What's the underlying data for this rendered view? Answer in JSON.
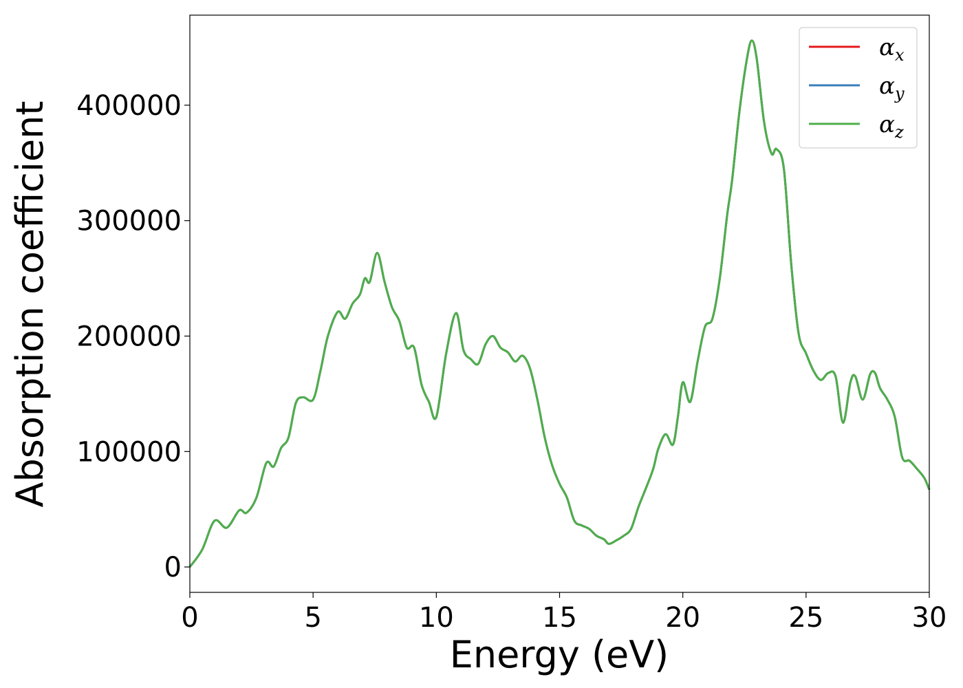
{
  "chart_data": {
    "type": "line",
    "title": "",
    "xlabel": "Energy (eV)",
    "ylabel": "Absorption coefficient",
    "xlim": [
      0,
      30
    ],
    "ylim": [
      -22000,
      478000
    ],
    "xticks": [
      0,
      5,
      10,
      15,
      20,
      25,
      30
    ],
    "yticks": [
      0,
      100000,
      200000,
      300000,
      400000
    ],
    "grid": false,
    "legend_position": "top-right",
    "series": [
      {
        "name": "α",
        "subscript": "x",
        "color": "#e41a1c",
        "x": [
          0,
          0.5,
          1.0,
          1.5,
          2.0,
          2.3,
          2.7,
          3.1,
          3.4,
          3.7,
          4.0,
          4.3,
          4.6,
          5.0,
          5.3,
          5.6,
          6.0,
          6.3,
          6.6,
          6.9,
          7.1,
          7.3,
          7.6,
          7.9,
          8.2,
          8.5,
          8.8,
          9.1,
          9.4,
          9.7,
          10.0,
          10.4,
          10.8,
          11.1,
          11.4,
          11.7,
          12.0,
          12.3,
          12.6,
          12.9,
          13.2,
          13.5,
          13.8,
          14.1,
          14.4,
          14.7,
          15.0,
          15.3,
          15.6,
          15.9,
          16.2,
          16.5,
          16.8,
          17.0,
          17.3,
          17.6,
          17.9,
          18.2,
          18.5,
          18.8,
          19.0,
          19.3,
          19.6,
          19.8,
          20.0,
          20.3,
          20.6,
          20.9,
          21.2,
          21.5,
          21.8,
          22.0,
          22.3,
          22.6,
          22.8,
          23.0,
          23.3,
          23.6,
          23.8,
          24.1,
          24.4,
          24.7,
          25.0,
          25.3,
          25.6,
          25.9,
          26.2,
          26.5,
          26.8,
          27.0,
          27.3,
          27.6,
          27.8,
          28.0,
          28.3,
          28.6,
          28.9,
          29.2,
          29.5,
          29.8,
          30.0
        ],
        "values": [
          0,
          15000,
          40000,
          34000,
          49000,
          47000,
          60000,
          90000,
          87000,
          103000,
          112000,
          142000,
          147000,
          145000,
          170000,
          200000,
          221000,
          215000,
          228000,
          236000,
          250000,
          247000,
          272000,
          247000,
          225000,
          213000,
          190000,
          190000,
          158000,
          143000,
          130000,
          185000,
          220000,
          188000,
          180000,
          176000,
          193000,
          200000,
          190000,
          186000,
          178000,
          183000,
          172000,
          145000,
          112000,
          88000,
          72000,
          60000,
          40000,
          36000,
          33000,
          27000,
          24000,
          20000,
          23000,
          27000,
          33000,
          52000,
          68000,
          85000,
          102000,
          115000,
          106000,
          130000,
          160000,
          143000,
          178000,
          208000,
          215000,
          250000,
          305000,
          335000,
          395000,
          440000,
          456000,
          440000,
          385000,
          358000,
          362000,
          345000,
          262000,
          202000,
          185000,
          170000,
          162000,
          168000,
          165000,
          125000,
          160000,
          165000,
          145000,
          167000,
          168000,
          155000,
          145000,
          130000,
          95000,
          92000,
          85000,
          77000,
          67000
        ]
      },
      {
        "name": "α",
        "subscript": "y",
        "color": "#377eb8",
        "x": [
          0,
          0.5,
          1.0,
          1.5,
          2.0,
          2.3,
          2.7,
          3.1,
          3.4,
          3.7,
          4.0,
          4.3,
          4.6,
          5.0,
          5.3,
          5.6,
          6.0,
          6.3,
          6.6,
          6.9,
          7.1,
          7.3,
          7.6,
          7.9,
          8.2,
          8.5,
          8.8,
          9.1,
          9.4,
          9.7,
          10.0,
          10.4,
          10.8,
          11.1,
          11.4,
          11.7,
          12.0,
          12.3,
          12.6,
          12.9,
          13.2,
          13.5,
          13.8,
          14.1,
          14.4,
          14.7,
          15.0,
          15.3,
          15.6,
          15.9,
          16.2,
          16.5,
          16.8,
          17.0,
          17.3,
          17.6,
          17.9,
          18.2,
          18.5,
          18.8,
          19.0,
          19.3,
          19.6,
          19.8,
          20.0,
          20.3,
          20.6,
          20.9,
          21.2,
          21.5,
          21.8,
          22.0,
          22.3,
          22.6,
          22.8,
          23.0,
          23.3,
          23.6,
          23.8,
          24.1,
          24.4,
          24.7,
          25.0,
          25.3,
          25.6,
          25.9,
          26.2,
          26.5,
          26.8,
          27.0,
          27.3,
          27.6,
          27.8,
          28.0,
          28.3,
          28.6,
          28.9,
          29.2,
          29.5,
          29.8,
          30.0
        ],
        "values": [
          0,
          15000,
          40000,
          34000,
          49000,
          47000,
          60000,
          90000,
          87000,
          103000,
          112000,
          142000,
          147000,
          145000,
          170000,
          200000,
          221000,
          215000,
          228000,
          236000,
          250000,
          247000,
          272000,
          247000,
          225000,
          213000,
          190000,
          190000,
          158000,
          143000,
          130000,
          185000,
          220000,
          188000,
          180000,
          176000,
          193000,
          200000,
          190000,
          186000,
          178000,
          183000,
          172000,
          145000,
          112000,
          88000,
          72000,
          60000,
          40000,
          36000,
          33000,
          27000,
          24000,
          20000,
          23000,
          27000,
          33000,
          52000,
          68000,
          85000,
          102000,
          115000,
          106000,
          130000,
          160000,
          143000,
          178000,
          208000,
          215000,
          250000,
          305000,
          335000,
          395000,
          440000,
          456000,
          440000,
          385000,
          358000,
          362000,
          345000,
          262000,
          202000,
          185000,
          170000,
          162000,
          168000,
          165000,
          125000,
          160000,
          165000,
          145000,
          167000,
          168000,
          155000,
          145000,
          130000,
          95000,
          92000,
          85000,
          77000,
          67000
        ]
      },
      {
        "name": "α",
        "subscript": "z",
        "color": "#4daf4a",
        "x": [
          0,
          0.5,
          1.0,
          1.5,
          2.0,
          2.3,
          2.7,
          3.1,
          3.4,
          3.7,
          4.0,
          4.3,
          4.6,
          5.0,
          5.3,
          5.6,
          6.0,
          6.3,
          6.6,
          6.9,
          7.1,
          7.3,
          7.6,
          7.9,
          8.2,
          8.5,
          8.8,
          9.1,
          9.4,
          9.7,
          10.0,
          10.4,
          10.8,
          11.1,
          11.4,
          11.7,
          12.0,
          12.3,
          12.6,
          12.9,
          13.2,
          13.5,
          13.8,
          14.1,
          14.4,
          14.7,
          15.0,
          15.3,
          15.6,
          15.9,
          16.2,
          16.5,
          16.8,
          17.0,
          17.3,
          17.6,
          17.9,
          18.2,
          18.5,
          18.8,
          19.0,
          19.3,
          19.6,
          19.8,
          20.0,
          20.3,
          20.6,
          20.9,
          21.2,
          21.5,
          21.8,
          22.0,
          22.3,
          22.6,
          22.8,
          23.0,
          23.3,
          23.6,
          23.8,
          24.1,
          24.4,
          24.7,
          25.0,
          25.3,
          25.6,
          25.9,
          26.2,
          26.5,
          26.8,
          27.0,
          27.3,
          27.6,
          27.8,
          28.0,
          28.3,
          28.6,
          28.9,
          29.2,
          29.5,
          29.8,
          30.0
        ],
        "values": [
          0,
          15000,
          40000,
          34000,
          49000,
          47000,
          60000,
          90000,
          87000,
          103000,
          112000,
          142000,
          147000,
          145000,
          170000,
          200000,
          221000,
          215000,
          228000,
          236000,
          250000,
          247000,
          272000,
          247000,
          225000,
          213000,
          190000,
          190000,
          158000,
          143000,
          130000,
          185000,
          220000,
          188000,
          180000,
          176000,
          193000,
          200000,
          190000,
          186000,
          178000,
          183000,
          172000,
          145000,
          112000,
          88000,
          72000,
          60000,
          40000,
          36000,
          33000,
          27000,
          24000,
          20000,
          23000,
          27000,
          33000,
          52000,
          68000,
          85000,
          102000,
          115000,
          106000,
          130000,
          160000,
          143000,
          178000,
          208000,
          215000,
          250000,
          305000,
          335000,
          395000,
          440000,
          456000,
          440000,
          385000,
          358000,
          362000,
          345000,
          262000,
          202000,
          185000,
          170000,
          162000,
          168000,
          165000,
          125000,
          160000,
          165000,
          145000,
          167000,
          168000,
          155000,
          145000,
          130000,
          95000,
          92000,
          85000,
          77000,
          67000
        ]
      }
    ]
  }
}
